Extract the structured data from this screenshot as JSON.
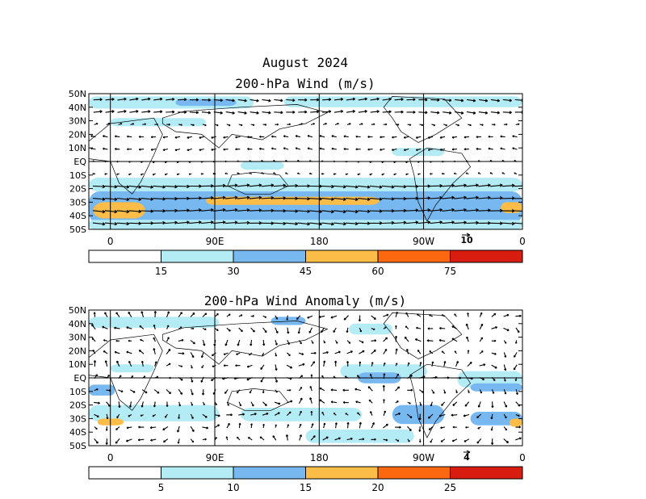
{
  "main_title": "August 2024",
  "panels": [
    {
      "title": "200-hPa Wind (m/s)",
      "reference_vector": "10",
      "colorbar": {
        "tick_labels": [
          "15",
          "30",
          "45",
          "60",
          "75"
        ],
        "colors": [
          "#ffffff",
          "#b4ecf6",
          "#78b8f0",
          "#fcbc48",
          "#fc6810",
          "#d81c10"
        ]
      }
    },
    {
      "title": "200-hPa Wind Anomaly (m/s)",
      "reference_vector": "4",
      "colorbar": {
        "tick_labels": [
          "5",
          "10",
          "15",
          "20",
          "25"
        ],
        "colors": [
          "#ffffff",
          "#b4ecf6",
          "#78b8f0",
          "#fcbc48",
          "#fc6810",
          "#d81c10"
        ]
      }
    }
  ],
  "chart_data": [
    {
      "type": "heatmap",
      "title": "200-hPa Wind (m/s)",
      "x_tick_labels": [
        "0",
        "90E",
        "180",
        "90W",
        "0"
      ],
      "y_tick_labels": [
        "50N",
        "40N",
        "30N",
        "20N",
        "10N",
        "EQ",
        "10S",
        "20S",
        "30S",
        "40S",
        "50S"
      ],
      "ylim": [
        "50S",
        "50N"
      ],
      "colorbar_levels": [
        15,
        30,
        45,
        60,
        75
      ],
      "description_bands": [
        {
          "lat": "45N",
          "speed": "15-30"
        },
        {
          "lat": "30S",
          "speed": "30-60"
        },
        {
          "lat": "40S",
          "speed": "30-45"
        }
      ]
    },
    {
      "type": "heatmap",
      "title": "200-hPa Wind Anomaly (m/s)",
      "x_tick_labels": [
        "0",
        "90E",
        "180",
        "90W",
        "0"
      ],
      "y_tick_labels": [
        "50N",
        "40N",
        "30N",
        "20N",
        "10N",
        "EQ",
        "10S",
        "20S",
        "30S",
        "40S",
        "50S"
      ],
      "ylim": [
        "50S",
        "50N"
      ],
      "colorbar_levels": [
        5,
        10,
        15,
        20,
        25
      ]
    }
  ]
}
